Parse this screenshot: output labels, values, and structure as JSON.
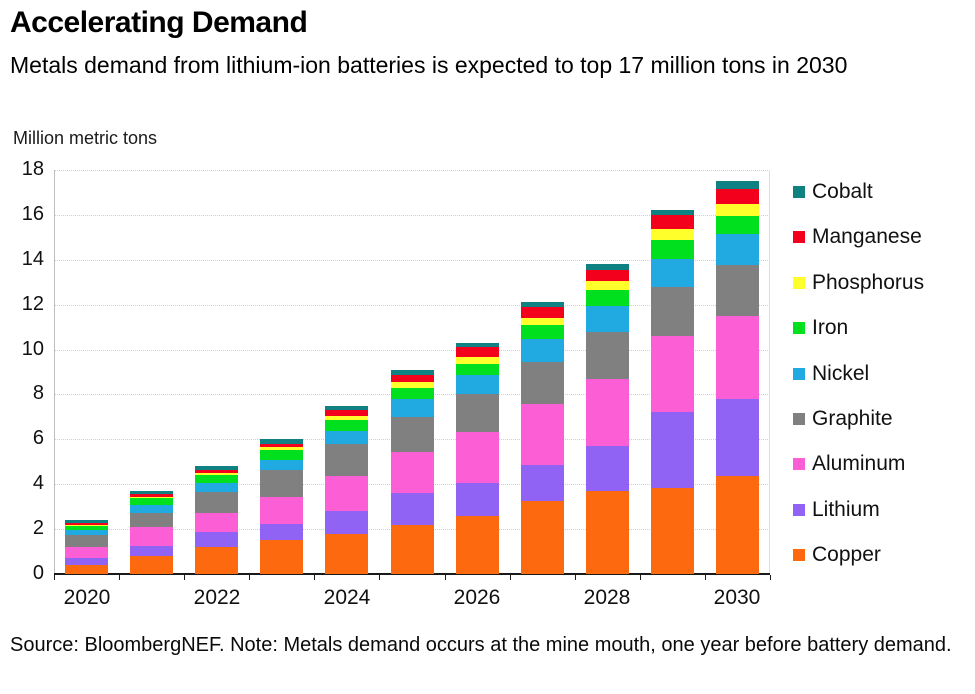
{
  "chart_data": {
    "type": "bar",
    "stacked": true,
    "title": "Accelerating Demand",
    "subtitle": "Metals demand from lithium-ion batteries is expected to top 17 million tons in 2030",
    "unit_label": "Million metric tons",
    "source_note": "Source: BloombergNEF. Note: Metals demand occurs at the mine mouth, one year before battery demand.",
    "categories": [
      "2020",
      "2021",
      "2022",
      "2023",
      "2024",
      "2025",
      "2026",
      "2027",
      "2028",
      "2029",
      "2030"
    ],
    "x_tick_labels": [
      "2020",
      "2022",
      "2024",
      "2026",
      "2028",
      "2030"
    ],
    "ylim": [
      0,
      18
    ],
    "y_ticks": [
      0,
      2,
      4,
      6,
      8,
      10,
      12,
      14,
      16,
      18
    ],
    "grid": "horizontal",
    "legend_position": "right",
    "series": [
      {
        "name": "Cobalt",
        "color": "#0f8183",
        "values": [
          0.12,
          0.14,
          0.15,
          0.2,
          0.2,
          0.23,
          0.18,
          0.22,
          0.24,
          0.22,
          0.35
        ]
      },
      {
        "name": "Manganese",
        "color": "#f2001c",
        "values": [
          0.08,
          0.11,
          0.14,
          0.15,
          0.26,
          0.33,
          0.46,
          0.48,
          0.5,
          0.62,
          0.65
        ]
      },
      {
        "name": "Phosphorus",
        "color": "#ffff2b",
        "values": [
          0.05,
          0.08,
          0.09,
          0.11,
          0.17,
          0.24,
          0.29,
          0.29,
          0.42,
          0.48,
          0.54
        ]
      },
      {
        "name": "Iron",
        "color": "#00e01f",
        "values": [
          0.2,
          0.3,
          0.38,
          0.45,
          0.5,
          0.5,
          0.5,
          0.65,
          0.7,
          0.83,
          0.83
        ]
      },
      {
        "name": "Nickel",
        "color": "#21a9e1",
        "values": [
          0.2,
          0.35,
          0.4,
          0.47,
          0.6,
          0.8,
          0.85,
          1.02,
          1.15,
          1.25,
          1.35
        ]
      },
      {
        "name": "Graphite",
        "color": "#808080",
        "values": [
          0.55,
          0.62,
          0.92,
          1.2,
          1.4,
          1.55,
          1.7,
          1.85,
          2.1,
          2.2,
          2.28
        ]
      },
      {
        "name": "Aluminum",
        "color": "#fc5fd5",
        "values": [
          0.5,
          0.85,
          0.87,
          1.17,
          1.57,
          1.85,
          2.27,
          2.72,
          2.97,
          3.4,
          3.7
        ]
      },
      {
        "name": "Lithium",
        "color": "#9163f4",
        "values": [
          0.3,
          0.45,
          0.65,
          0.75,
          1.0,
          1.4,
          1.45,
          1.62,
          2.02,
          3.35,
          3.45
        ]
      },
      {
        "name": "Copper",
        "color": "#fc690f",
        "values": [
          0.4,
          0.8,
          1.2,
          1.5,
          1.8,
          2.2,
          2.6,
          3.25,
          3.7,
          3.85,
          4.35
        ]
      }
    ],
    "totals": [
      2.4,
      3.7,
      4.8,
      6.0,
      7.5,
      9.1,
      10.3,
      12.1,
      13.8,
      16.2,
      17.5
    ]
  }
}
